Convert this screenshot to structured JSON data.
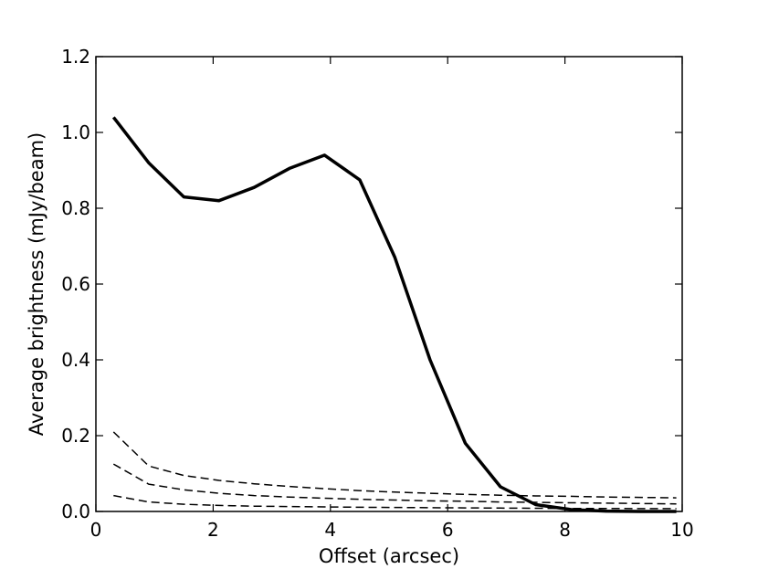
{
  "chart_data": {
    "type": "line",
    "title": "",
    "xlabel": "Offset (arcsec)",
    "ylabel": "Average brightness (mJy/beam)",
    "xlim": [
      0,
      10
    ],
    "ylim": [
      0,
      1.2
    ],
    "xticks": [
      0,
      2,
      4,
      6,
      8,
      10
    ],
    "xtick_labels": [
      "0",
      "2",
      "4",
      "6",
      "8",
      "10"
    ],
    "yticks": [
      0.0,
      0.2,
      0.4,
      0.6,
      0.8,
      1.0,
      1.2
    ],
    "ytick_labels": [
      "0.0",
      "0.2",
      "0.4",
      "0.6",
      "0.8",
      "1.0",
      "1.2"
    ],
    "grid": false,
    "legend": "none",
    "series": [
      {
        "style": "solid",
        "color": "#000000",
        "x": [
          0.3,
          0.9,
          1.5,
          2.1,
          2.7,
          3.3,
          3.9,
          4.5,
          5.1,
          5.7,
          6.3,
          6.9,
          7.5,
          8.1,
          8.7,
          9.3,
          9.9
        ],
        "y": [
          1.04,
          0.92,
          0.83,
          0.82,
          0.855,
          0.905,
          0.94,
          0.875,
          0.67,
          0.4,
          0.18,
          0.065,
          0.018,
          0.005,
          0.001,
          0.0,
          0.0
        ]
      },
      {
        "style": "dashed",
        "color": "#000000",
        "x": [
          0.3,
          0.9,
          1.5,
          2.1,
          2.7,
          3.3,
          3.9,
          4.5,
          5.1,
          5.7,
          6.3,
          6.9,
          7.5,
          8.1,
          8.7,
          9.3,
          9.9
        ],
        "y": [
          0.21,
          0.12,
          0.095,
          0.082,
          0.073,
          0.066,
          0.06,
          0.055,
          0.051,
          0.048,
          0.045,
          0.043,
          0.041,
          0.04,
          0.038,
          0.037,
          0.036
        ]
      },
      {
        "style": "dashed",
        "color": "#000000",
        "x": [
          0.3,
          0.9,
          1.5,
          2.1,
          2.7,
          3.3,
          3.9,
          4.5,
          5.1,
          5.7,
          6.3,
          6.9,
          7.5,
          8.1,
          8.7,
          9.3,
          9.9
        ],
        "y": [
          0.125,
          0.072,
          0.057,
          0.048,
          0.042,
          0.038,
          0.035,
          0.032,
          0.03,
          0.028,
          0.027,
          0.025,
          0.024,
          0.023,
          0.022,
          0.021,
          0.02
        ]
      },
      {
        "style": "dashed",
        "color": "#000000",
        "x": [
          0.3,
          0.9,
          1.5,
          2.1,
          2.7,
          3.3,
          3.9,
          4.5,
          5.1,
          5.7,
          6.3,
          6.9,
          7.5,
          8.1,
          8.7,
          9.3,
          9.9
        ],
        "y": [
          0.042,
          0.025,
          0.019,
          0.016,
          0.014,
          0.013,
          0.012,
          0.011,
          0.0105,
          0.01,
          0.0095,
          0.009,
          0.0085,
          0.008,
          0.008,
          0.0075,
          0.0075
        ]
      }
    ]
  }
}
